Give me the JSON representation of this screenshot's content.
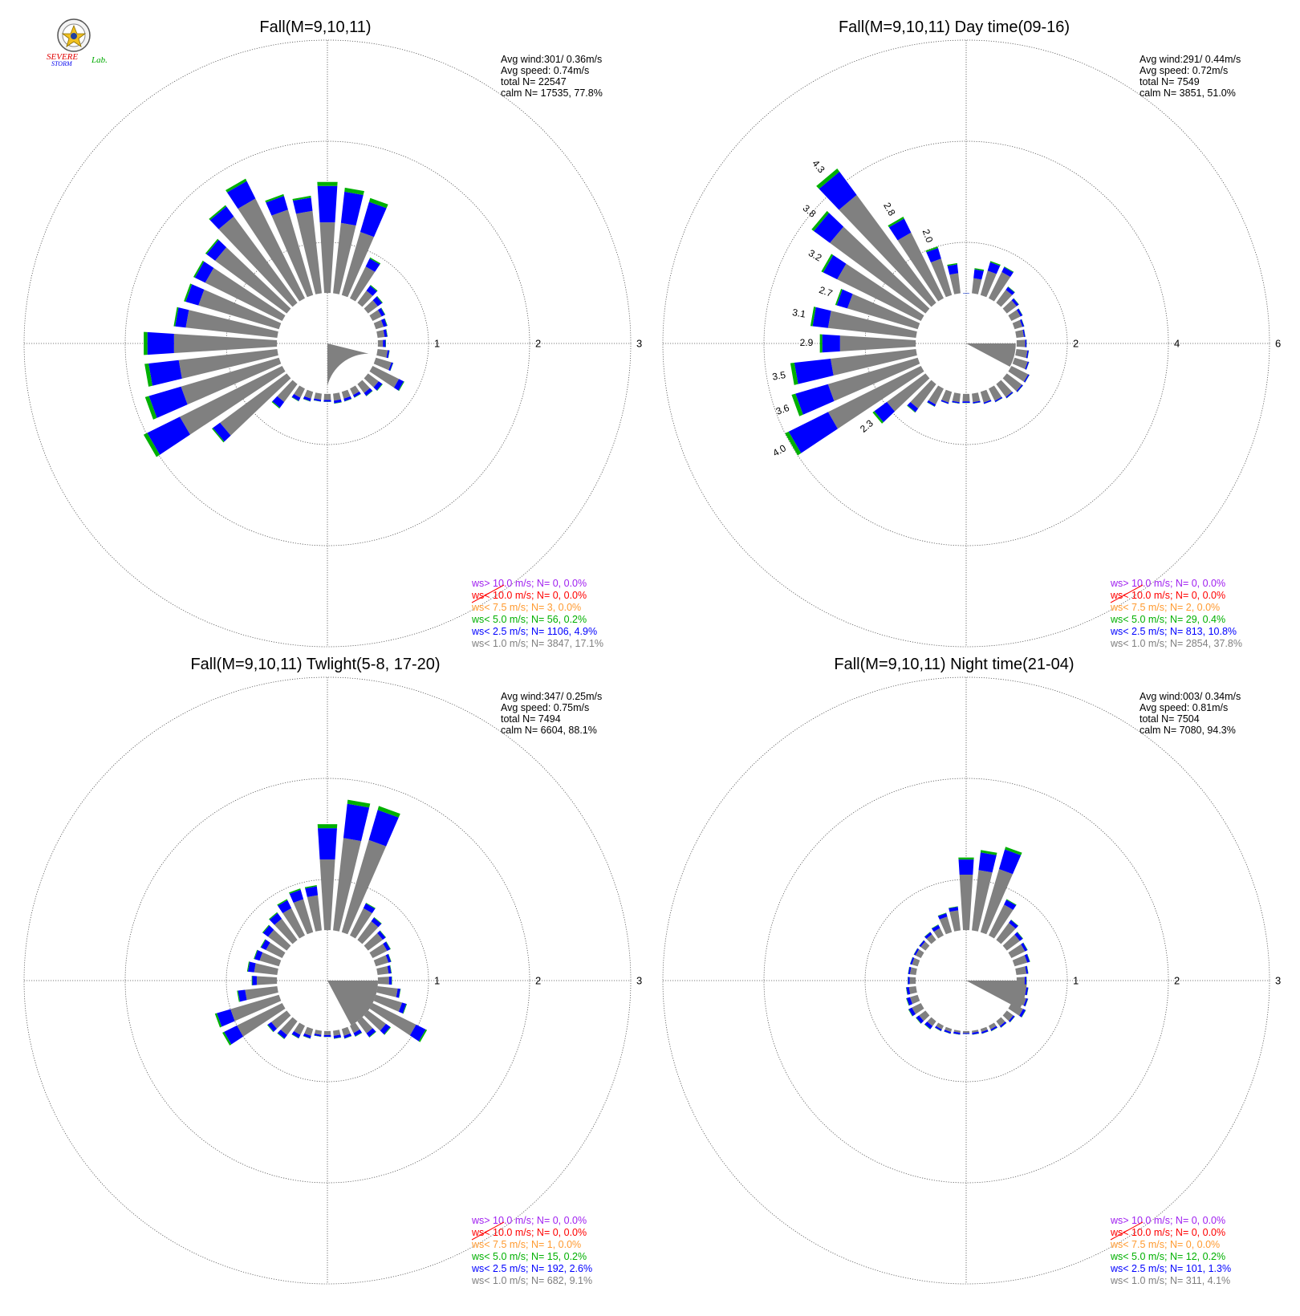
{
  "logo": {
    "lines": [
      "SEVERE",
      "STORM",
      "Lab."
    ],
    "colors": [
      "#e00000",
      "#0000ee",
      "#00aa00"
    ]
  },
  "legend_colors": {
    "ws_gt_10": "#a020f0",
    "ws_lt_10": "#ff0000",
    "ws_lt_7_5": "#ff9a30",
    "ws_lt_5": "#00b000",
    "ws_lt_2_5": "#0000ff",
    "ws_lt_1": "#808080"
  },
  "chart_data": [
    {
      "type": "windrose",
      "title": "Fall(M=9,10,11)",
      "radial_ticks": [
        "1",
        "2",
        "3"
      ],
      "rmax": 3,
      "calm_r": 0.5,
      "stats": [
        "Avg wind:301/ 0.36m/s",
        "Avg speed: 0.74m/s",
        "total N=        22547",
        "calm N=  17535,  77.8%"
      ],
      "legend": [
        "ws> 10.0 m/s; N=      0,  0.0%",
        "ws< 10.0 m/s; N=      0,  0.0%",
        "ws<  7.5 m/s; N=      3,  0.0%",
        "ws<  5.0 m/s; N=     56,  0.2%",
        "ws<  2.5 m/s; N=   1106,  4.9%",
        "ws<  1.0 m/s; N=   3847, 17.1%"
      ],
      "calm_sector": [
        180,
        104,
        0.42
      ],
      "bars": [
        [
          0,
          1.6,
          1.2
        ],
        [
          10,
          1.55,
          1.2
        ],
        [
          20,
          1.5,
          1.15
        ],
        [
          30,
          0.95,
          0.85
        ],
        [
          40,
          0.72,
          0.65
        ],
        [
          50,
          0.68,
          0.62
        ],
        [
          60,
          0.64,
          0.6
        ],
        [
          70,
          0.62,
          0.58
        ],
        [
          80,
          0.6,
          0.57
        ],
        [
          90,
          0.58,
          0.55
        ],
        [
          100,
          0.62,
          0.6
        ],
        [
          110,
          0.68,
          0.66
        ],
        [
          120,
          0.85,
          0.79
        ],
        [
          130,
          0.68,
          0.63
        ],
        [
          140,
          0.65,
          0.61
        ],
        [
          150,
          0.6,
          0.57
        ],
        [
          160,
          0.6,
          0.57
        ],
        [
          170,
          0.6,
          0.57
        ],
        [
          180,
          0.58,
          0.56
        ],
        [
          190,
          0.58,
          0.56
        ],
        [
          200,
          0.6,
          0.57
        ],
        [
          210,
          0.64,
          0.6
        ],
        [
          220,
          0.8,
          0.72
        ],
        [
          230,
          1.42,
          1.32
        ],
        [
          240,
          2.03,
          1.63
        ],
        [
          250,
          1.88,
          1.51
        ],
        [
          260,
          1.82,
          1.48
        ],
        [
          270,
          1.82,
          1.52
        ],
        [
          280,
          1.53,
          1.41
        ],
        [
          290,
          1.48,
          1.33
        ],
        [
          300,
          1.48,
          1.35
        ],
        [
          310,
          1.5,
          1.38
        ],
        [
          320,
          1.7,
          1.56
        ],
        [
          330,
          1.82,
          1.6
        ],
        [
          340,
          1.54,
          1.38
        ],
        [
          350,
          1.47,
          1.32
        ]
      ],
      "bar_labels": []
    },
    {
      "type": "windrose",
      "title": "Fall(M=9,10,11) Day time(09-16)",
      "radial_ticks": [
        "2",
        "4",
        "6"
      ],
      "rmax": 6,
      "calm_r": 1.0,
      "stats": [
        "Avg wind:291/ 0.44m/s",
        "Avg speed: 0.72m/s",
        "total N=        7549",
        "calm N=  3851,  51.0%"
      ],
      "legend": [
        "ws> 10.0 m/s; N=      0,  0.0%",
        "ws< 10.0 m/s; N=      0,  0.0%",
        "ws<  7.5 m/s; N=      2,  0.0%",
        "ws<  5.0 m/s; N=     29,  0.4%",
        "ws<  2.5 m/s; N=    813, 10.8%",
        "ws<  1.0 m/s; N=   2854, 37.8%"
      ],
      "calm_sector": [
        90,
        118,
        0.98
      ],
      "bars": [
        [
          0,
          1.0,
          0.99
        ],
        [
          10,
          1.5,
          1.3
        ],
        [
          20,
          1.7,
          1.5
        ],
        [
          30,
          1.7,
          1.58
        ],
        [
          40,
          1.4,
          1.32
        ],
        [
          50,
          1.3,
          1.24
        ],
        [
          60,
          1.25,
          1.2
        ],
        [
          70,
          1.2,
          1.16
        ],
        [
          80,
          1.18,
          1.15
        ],
        [
          90,
          1.2,
          1.17
        ],
        [
          100,
          1.25,
          1.22
        ],
        [
          110,
          1.3,
          1.27
        ],
        [
          120,
          1.4,
          1.37
        ],
        [
          130,
          1.4,
          1.37
        ],
        [
          140,
          1.35,
          1.32
        ],
        [
          150,
          1.3,
          1.27
        ],
        [
          160,
          1.25,
          1.22
        ],
        [
          170,
          1.2,
          1.17
        ],
        [
          180,
          1.18,
          1.15
        ],
        [
          190,
          1.2,
          1.17
        ],
        [
          200,
          1.25,
          1.22
        ],
        [
          210,
          1.4,
          1.35
        ],
        [
          220,
          1.7,
          1.6
        ],
        [
          230,
          2.3,
          1.95
        ],
        [
          240,
          4.0,
          3.05
        ],
        [
          250,
          3.6,
          2.85
        ],
        [
          260,
          3.5,
          2.7
        ],
        [
          270,
          2.9,
          2.5
        ],
        [
          280,
          3.1,
          2.75
        ],
        [
          290,
          2.7,
          2.45
        ],
        [
          300,
          3.2,
          2.85
        ],
        [
          310,
          3.8,
          3.35
        ],
        [
          320,
          4.3,
          3.65
        ],
        [
          330,
          2.8,
          2.45
        ],
        [
          340,
          2.0,
          1.75
        ],
        [
          350,
          1.6,
          1.4
        ]
      ],
      "bar_labels": [
        [
          240,
          "4.0"
        ],
        [
          250,
          "3.6"
        ],
        [
          260,
          "3.5"
        ],
        [
          270,
          "2.9"
        ],
        [
          280,
          "3.1"
        ],
        [
          290,
          "2.7"
        ],
        [
          300,
          "3.2"
        ],
        [
          310,
          "3.8"
        ],
        [
          320,
          "4.3"
        ],
        [
          330,
          "2.8"
        ],
        [
          340,
          "2.0"
        ],
        [
          230,
          "2.3"
        ]
      ]
    },
    {
      "type": "windrose",
      "title": "Fall(M=9,10,11) Twlight(5-8, 17-20)",
      "radial_ticks": [
        "1",
        "2",
        "3"
      ],
      "rmax": 3,
      "calm_r": 0.5,
      "stats": [
        "Avg wind:347/ 0.25m/s",
        "Avg speed: 0.75m/s",
        "total N=        7494",
        "calm N=  6604,  88.1%"
      ],
      "legend": [
        "ws> 10.0 m/s; N=      0,  0.0%",
        "ws< 10.0 m/s; N=      0,  0.0%",
        "ws<  7.5 m/s; N=      1,  0.0%",
        "ws<  5.0 m/s; N=     15,  0.2%",
        "ws<  2.5 m/s; N=    192,  2.6%",
        "ws<  1.0 m/s; N=    682,  9.1%"
      ],
      "calm_sector": [
        90,
        152,
        0.5
      ],
      "bars": [
        [
          0,
          1.55,
          1.2
        ],
        [
          10,
          1.8,
          1.42
        ],
        [
          20,
          1.8,
          1.45
        ],
        [
          30,
          0.86,
          0.8
        ],
        [
          40,
          0.78,
          0.73
        ],
        [
          50,
          0.72,
          0.68
        ],
        [
          60,
          0.7,
          0.66
        ],
        [
          70,
          0.66,
          0.63
        ],
        [
          80,
          0.64,
          0.61
        ],
        [
          90,
          0.64,
          0.61
        ],
        [
          100,
          0.73,
          0.7
        ],
        [
          110,
          0.82,
          0.77
        ],
        [
          120,
          1.1,
          0.98
        ],
        [
          130,
          0.78,
          0.72
        ],
        [
          140,
          0.7,
          0.65
        ],
        [
          150,
          0.62,
          0.58
        ],
        [
          160,
          0.6,
          0.57
        ],
        [
          170,
          0.58,
          0.55
        ],
        [
          180,
          0.56,
          0.54
        ],
        [
          190,
          0.56,
          0.54
        ],
        [
          200,
          0.6,
          0.57
        ],
        [
          210,
          0.64,
          0.6
        ],
        [
          220,
          0.72,
          0.67
        ],
        [
          230,
          0.74,
          0.69
        ],
        [
          240,
          1.16,
          1.0
        ],
        [
          250,
          1.16,
          1.0
        ],
        [
          260,
          0.9,
          0.82
        ],
        [
          270,
          0.75,
          0.7
        ],
        [
          280,
          0.8,
          0.73
        ],
        [
          290,
          0.76,
          0.7
        ],
        [
          300,
          0.74,
          0.68
        ],
        [
          310,
          0.8,
          0.73
        ],
        [
          320,
          0.84,
          0.76
        ],
        [
          330,
          0.9,
          0.8
        ],
        [
          340,
          0.95,
          0.84
        ],
        [
          350,
          0.95,
          0.85
        ]
      ],
      "bar_labels": []
    },
    {
      "type": "windrose",
      "title": "Fall(M=9,10,11) Night time(21-04)",
      "radial_ticks": [
        "1",
        "2",
        "3"
      ],
      "rmax": 3,
      "calm_r": 0.5,
      "stats": [
        "Avg wind:003/ 0.34m/s",
        "Avg speed: 0.81m/s",
        "total N=        7504",
        "calm N=  7080,  94.3%"
      ],
      "legend": [
        "ws> 10.0 m/s; N=      0,  0.0%",
        "ws< 10.0 m/s; N=      0,  0.0%",
        "ws<  7.5 m/s; N=      0,  0.0%",
        "ws<  5.0 m/s; N=     12,  0.2%",
        "ws<  2.5 m/s; N=    101,  1.3%",
        "ws<  1.0 m/s; N=    311,  4.1%"
      ],
      "calm_sector": [
        90,
        118,
        0.6
      ],
      "bars": [
        [
          0,
          1.22,
          1.05
        ],
        [
          10,
          1.3,
          1.1
        ],
        [
          20,
          1.38,
          1.15
        ],
        [
          30,
          0.9,
          0.84
        ],
        [
          40,
          0.75,
          0.71
        ],
        [
          50,
          0.7,
          0.66
        ],
        [
          60,
          0.68,
          0.65
        ],
        [
          70,
          0.66,
          0.63
        ],
        [
          80,
          0.62,
          0.6
        ],
        [
          90,
          0.6,
          0.58
        ],
        [
          100,
          0.62,
          0.6
        ],
        [
          110,
          0.64,
          0.62
        ],
        [
          120,
          0.66,
          0.63
        ],
        [
          130,
          0.6,
          0.58
        ],
        [
          140,
          0.58,
          0.56
        ],
        [
          150,
          0.56,
          0.54
        ],
        [
          160,
          0.55,
          0.53
        ],
        [
          170,
          0.54,
          0.52
        ],
        [
          180,
          0.53,
          0.52
        ],
        [
          190,
          0.54,
          0.52
        ],
        [
          200,
          0.55,
          0.53
        ],
        [
          210,
          0.56,
          0.54
        ],
        [
          220,
          0.6,
          0.56
        ],
        [
          230,
          0.62,
          0.58
        ],
        [
          240,
          0.64,
          0.6
        ],
        [
          250,
          0.62,
          0.58
        ],
        [
          260,
          0.6,
          0.57
        ],
        [
          270,
          0.58,
          0.56
        ],
        [
          280,
          0.58,
          0.56
        ],
        [
          290,
          0.58,
          0.56
        ],
        [
          300,
          0.58,
          0.56
        ],
        [
          310,
          0.58,
          0.56
        ],
        [
          320,
          0.6,
          0.57
        ],
        [
          330,
          0.62,
          0.58
        ],
        [
          340,
          0.7,
          0.66
        ],
        [
          350,
          0.74,
          0.7
        ]
      ],
      "bar_labels": []
    }
  ]
}
